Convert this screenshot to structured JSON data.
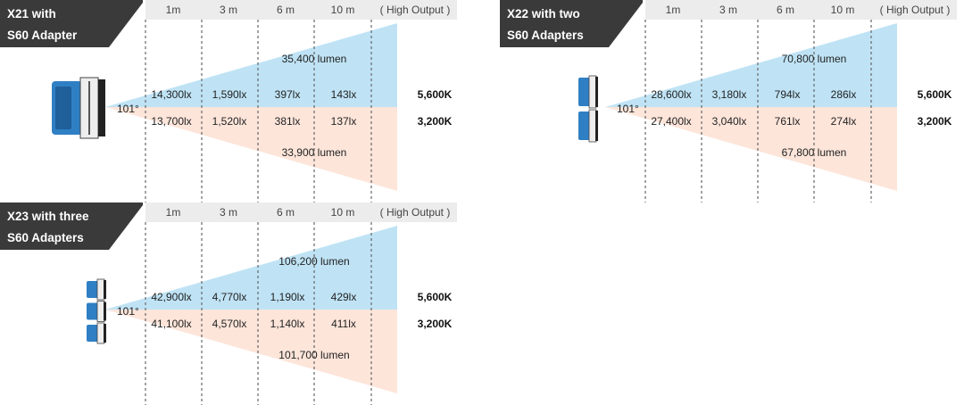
{
  "header_labels": [
    "1m",
    "3 m",
    "6 m",
    "10 m",
    "( High Output )"
  ],
  "angle": "101°",
  "colors": {
    "cool": "#bfe3f5",
    "warm": "#fde5da",
    "title_bg": "#3a3a3a",
    "header_bg": "#ececec",
    "device": "#2f7fc4"
  },
  "panels": [
    {
      "id": "x21",
      "title": [
        "X21 with",
        "S60 Adapter"
      ],
      "device_count": 1,
      "cool": {
        "lumen": "35,400 lumen",
        "lux": [
          "14,300lx",
          "1,590lx",
          "397lx",
          "143lx"
        ],
        "kelvin": "5,600K"
      },
      "warm": {
        "lumen": "33,900 lumen",
        "lux": [
          "13,700lx",
          "1,520lx",
          "381lx",
          "137lx"
        ],
        "kelvin": "3,200K"
      }
    },
    {
      "id": "x22",
      "title": [
        "X22 with two",
        "S60 Adapters"
      ],
      "device_count": 2,
      "cool": {
        "lumen": "70,800 lumen",
        "lux": [
          "28,600lx",
          "3,180lx",
          "794lx",
          "286lx"
        ],
        "kelvin": "5,600K"
      },
      "warm": {
        "lumen": "67,800 lumen",
        "lux": [
          "27,400lx",
          "3,040lx",
          "761lx",
          "274lx"
        ],
        "kelvin": "3,200K"
      }
    },
    {
      "id": "x23",
      "title": [
        "X23 with three",
        "S60 Adapters"
      ],
      "device_count": 3,
      "cool": {
        "lumen": "106,200 lumen",
        "lux": [
          "42,900lx",
          "4,770lx",
          "1,190lx",
          "429lx"
        ],
        "kelvin": "5,600K"
      },
      "warm": {
        "lumen": "101,700 lumen",
        "lux": [
          "41,100lx",
          "4,570lx",
          "1,140lx",
          "411lx"
        ],
        "kelvin": "3,200K"
      }
    }
  ]
}
